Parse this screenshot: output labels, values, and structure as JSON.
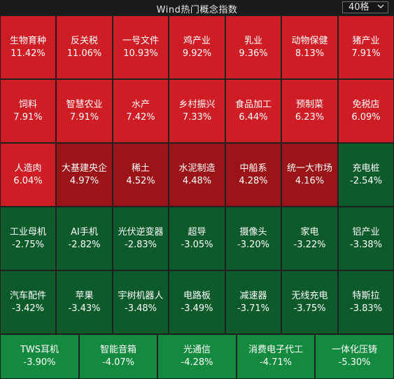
{
  "header": {
    "title": "Wind热门概念指数",
    "selector_value": "40格",
    "selector_icon": "chevron-down-icon"
  },
  "colors": {
    "red_strong": "#cf1d25",
    "red_dark": "#9b1418",
    "green_light": "#138a3e",
    "green_dark": "#0d5a2a"
  },
  "rows": [
    {
      "tiles": [
        {
          "name": "生物育种",
          "pct": "11.42%",
          "color": "#cf1d25"
        },
        {
          "name": "反关税",
          "pct": "11.06%",
          "color": "#cf1d25"
        },
        {
          "name": "一号文件",
          "pct": "10.93%",
          "color": "#cf1d25"
        },
        {
          "name": "鸡产业",
          "pct": "9.92%",
          "color": "#cf1d25"
        },
        {
          "name": "乳业",
          "pct": "9.36%",
          "color": "#cf1d25"
        },
        {
          "name": "动物保健",
          "pct": "8.13%",
          "color": "#cf1d25"
        },
        {
          "name": "猪产业",
          "pct": "7.91%",
          "color": "#cf1d25"
        }
      ]
    },
    {
      "tiles": [
        {
          "name": "饲料",
          "pct": "7.91%",
          "color": "#cf1d25"
        },
        {
          "name": "智慧农业",
          "pct": "7.91%",
          "color": "#cf1d25"
        },
        {
          "name": "水产",
          "pct": "7.42%",
          "color": "#cf1d25"
        },
        {
          "name": "乡村振兴",
          "pct": "7.33%",
          "color": "#cf1d25"
        },
        {
          "name": "食品加工",
          "pct": "6.44%",
          "color": "#cf1d25"
        },
        {
          "name": "预制菜",
          "pct": "6.23%",
          "color": "#cf1d25"
        },
        {
          "name": "免税店",
          "pct": "6.09%",
          "color": "#cf1d25"
        }
      ]
    },
    {
      "tiles": [
        {
          "name": "人造肉",
          "pct": "6.04%",
          "color": "#cf1d25"
        },
        {
          "name": "大基建央企",
          "pct": "4.97%",
          "color": "#9b1418"
        },
        {
          "name": "稀土",
          "pct": "4.52%",
          "color": "#9b1418"
        },
        {
          "name": "水泥制造",
          "pct": "4.48%",
          "color": "#9b1418"
        },
        {
          "name": "中船系",
          "pct": "4.28%",
          "color": "#9b1418"
        },
        {
          "name": "统一大市场",
          "pct": "4.16%",
          "color": "#9b1418"
        },
        {
          "name": "充电桩",
          "pct": "-2.54%",
          "color": "#0d5a2a"
        }
      ]
    },
    {
      "tiles": [
        {
          "name": "工业母机",
          "pct": "-2.75%",
          "color": "#0d5a2a"
        },
        {
          "name": "AI手机",
          "pct": "-2.82%",
          "color": "#0d5a2a"
        },
        {
          "name": "光伏逆变器",
          "pct": "-2.83%",
          "color": "#0d5a2a"
        },
        {
          "name": "超导",
          "pct": "-3.05%",
          "color": "#0d5a2a"
        },
        {
          "name": "摄像头",
          "pct": "-3.20%",
          "color": "#0d5a2a"
        },
        {
          "name": "家电",
          "pct": "-3.22%",
          "color": "#0d5a2a"
        },
        {
          "name": "铝产业",
          "pct": "-3.38%",
          "color": "#0d5a2a"
        }
      ]
    },
    {
      "tiles": [
        {
          "name": "汽车配件",
          "pct": "-3.42%",
          "color": "#0d5a2a"
        },
        {
          "name": "苹果",
          "pct": "-3.43%",
          "color": "#0d5a2a"
        },
        {
          "name": "宇树机器人",
          "pct": "-3.48%",
          "color": "#0d5a2a"
        },
        {
          "name": "电路板",
          "pct": "-3.49%",
          "color": "#0d5a2a"
        },
        {
          "name": "减速器",
          "pct": "-3.71%",
          "color": "#0d5a2a"
        },
        {
          "name": "无线充电",
          "pct": "-3.75%",
          "color": "#0d5a2a"
        },
        {
          "name": "特斯拉",
          "pct": "-3.83%",
          "color": "#0d5a2a"
        }
      ]
    },
    {
      "tiles": [
        {
          "name": "TWS耳机",
          "pct": "-3.90%",
          "color": "#138a3e"
        },
        {
          "name": "智能音箱",
          "pct": "-4.07%",
          "color": "#138a3e"
        },
        {
          "name": "光通信",
          "pct": "-4.28%",
          "color": "#138a3e"
        },
        {
          "name": "消费电子代工",
          "pct": "-4.71%",
          "color": "#138a3e"
        },
        {
          "name": "一体化压铸",
          "pct": "-5.30%",
          "color": "#138a3e"
        }
      ]
    }
  ]
}
